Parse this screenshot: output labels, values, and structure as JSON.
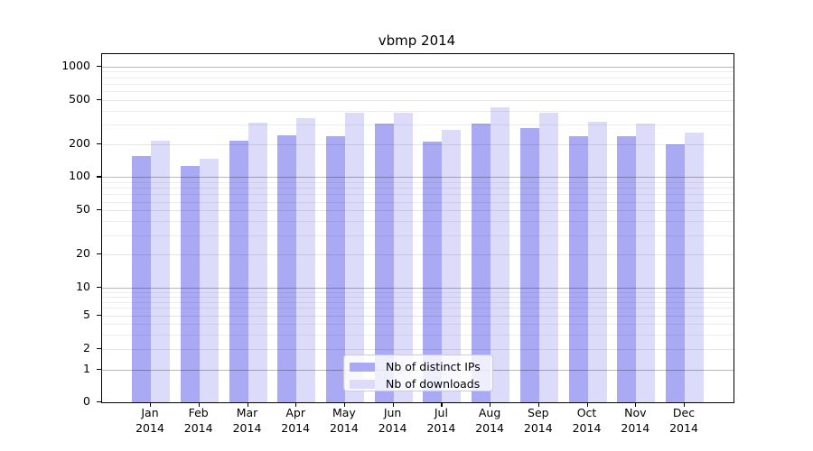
{
  "title": "vbmp 2014",
  "chart_data": {
    "type": "bar",
    "title": "vbmp 2014",
    "categories": [
      "Jan",
      "Feb",
      "Mar",
      "Apr",
      "May",
      "Jun",
      "Jul",
      "Aug",
      "Sep",
      "Oct",
      "Nov",
      "Dec"
    ],
    "category_year": "2014",
    "series": [
      {
        "name": "Nb of distinct IPs",
        "color": "#a9a9f4",
        "values": [
          155,
          126,
          212,
          240,
          234,
          304,
          209,
          304,
          280,
          237,
          234,
          200
        ]
      },
      {
        "name": "Nb of downloads",
        "color": "#dcdcfa",
        "values": [
          212,
          148,
          310,
          345,
          386,
          381,
          269,
          429,
          386,
          316,
          304,
          252
        ]
      }
    ],
    "yscale": "symlog",
    "ylim": [
      0,
      1000
    ],
    "yticks": [
      1000,
      500,
      200,
      100,
      50,
      20,
      10,
      5,
      2,
      1,
      0
    ],
    "minor_gridline_values": [
      3,
      4,
      6,
      7,
      8,
      9,
      30,
      40,
      60,
      70,
      80,
      90,
      300,
      400,
      600,
      700,
      800,
      900
    ],
    "decade_gridline_values": [
      1,
      10,
      100,
      1000
    ],
    "grid": true,
    "legend_position": "lower center"
  },
  "colors": {
    "background": "#ffffff",
    "spine": "#000000",
    "series_ips": "#a9a9f4",
    "series_downloads": "#dcdcfa",
    "legend_border": "#cccccc"
  }
}
